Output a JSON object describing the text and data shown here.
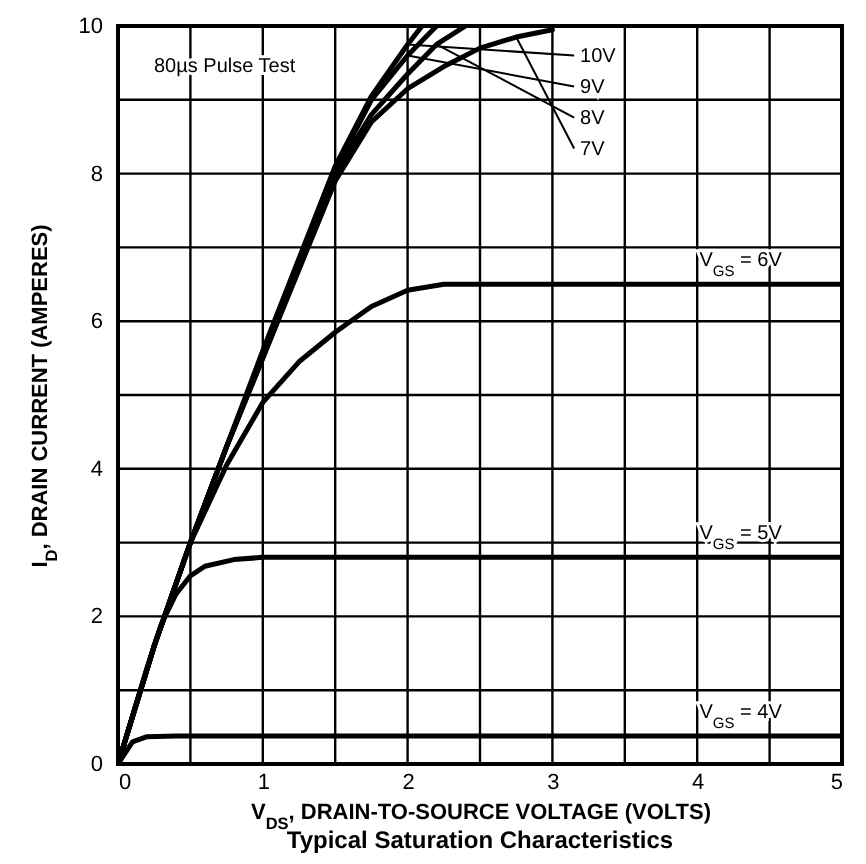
{
  "chart_data": {
    "type": "line",
    "title": "Typical Saturation Characteristics",
    "xlabel": "V$_{DS}$, DRAIN-TO-SOURCE VOLTAGE (VOLTS)",
    "ylabel": "I$_{D}$, DRAIN CURRENT (AMPERES)",
    "xlim": [
      0,
      5
    ],
    "ylim": [
      0,
      10
    ],
    "xticks": [
      0,
      {
        "value": 0.5,
        "label": null
      },
      1,
      {
        "value": 1.5,
        "label": null
      },
      2,
      {
        "value": 2.5,
        "label": null
      },
      3,
      {
        "value": 3.5,
        "label": null
      },
      4,
      {
        "value": 4.5,
        "label": null
      },
      5
    ],
    "yticks": [
      0,
      {
        "value": 1,
        "label": null
      },
      2,
      {
        "value": 3,
        "label": null
      },
      4,
      {
        "value": 5,
        "label": null
      },
      6,
      {
        "value": 7,
        "label": null
      },
      8,
      {
        "value": 9,
        "label": null
      },
      10
    ],
    "grid": true,
    "line_style": "solid",
    "series": [
      {
        "name": "V$_{GS}$ = 4V",
        "color": "#000000",
        "x": [
          0,
          0.05,
          0.1,
          0.2,
          0.4,
          5
        ],
        "values": [
          0,
          0.15,
          0.3,
          0.37,
          0.38,
          0.38
        ]
      },
      {
        "name": "V$_{GS}$ = 5V",
        "color": "#000000",
        "x": [
          0,
          0.1,
          0.2,
          0.3,
          0.4,
          0.5,
          0.6,
          0.8,
          1,
          5
        ],
        "values": [
          0,
          0.65,
          1.3,
          1.9,
          2.3,
          2.55,
          2.68,
          2.77,
          2.8,
          2.8
        ]
      },
      {
        "name": "V$_{GS}$ = 6V",
        "color": "#000000",
        "x": [
          0,
          0.25,
          0.5,
          0.75,
          1,
          1.25,
          1.5,
          1.75,
          2,
          2.25,
          5
        ],
        "values": [
          0,
          1.6,
          3.0,
          4.05,
          4.9,
          5.45,
          5.85,
          6.2,
          6.42,
          6.5,
          6.5
        ]
      },
      {
        "name": "7V",
        "color": "#000000",
        "x": [
          0,
          0.25,
          0.5,
          0.75,
          1,
          1.25,
          1.5,
          1.75,
          2,
          2.25,
          2.5,
          2.75,
          3
        ],
        "values": [
          0,
          1.6,
          3.0,
          4.3,
          5.5,
          6.7,
          7.9,
          8.7,
          9.15,
          9.45,
          9.7,
          9.85,
          9.95
        ]
      },
      {
        "name": "8V",
        "color": "#000000",
        "x": [
          0,
          0.25,
          0.5,
          0.75,
          1,
          1.25,
          1.5,
          1.75,
          2,
          2.2,
          2.4
        ],
        "values": [
          0,
          1.6,
          3.0,
          4.3,
          5.5,
          6.75,
          8.0,
          8.8,
          9.35,
          9.75,
          10
        ]
      },
      {
        "name": "9V",
        "color": "#000000",
        "x": [
          0,
          0.25,
          0.5,
          0.75,
          1,
          1.25,
          1.5,
          1.75,
          2,
          2.2
        ],
        "values": [
          0,
          1.6,
          3.0,
          4.3,
          5.55,
          6.8,
          8.05,
          9.0,
          9.6,
          10
        ]
      },
      {
        "name": "10V",
        "color": "#000000",
        "x": [
          0,
          0.25,
          0.5,
          0.75,
          1,
          1.25,
          1.5,
          1.75,
          2,
          2.1
        ],
        "values": [
          0,
          1.6,
          3.0,
          4.3,
          5.6,
          6.85,
          8.1,
          9.05,
          9.75,
          10
        ]
      }
    ],
    "annotations": [
      "80µs Pulse Test"
    ]
  }
}
